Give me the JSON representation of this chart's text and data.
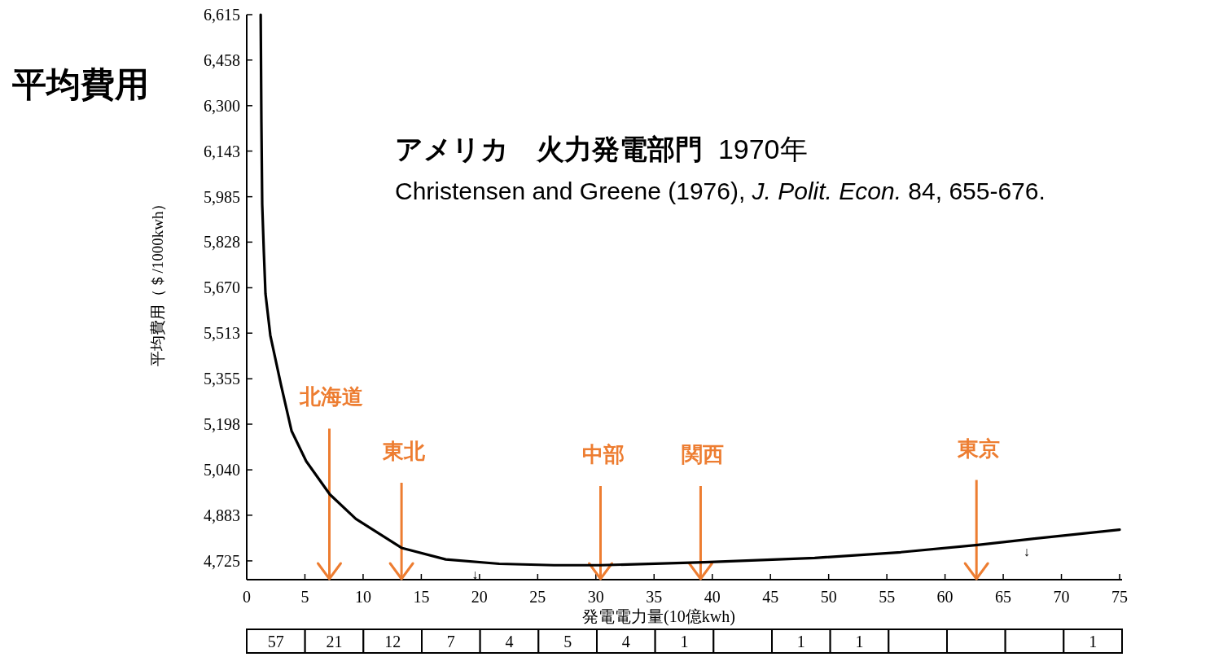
{
  "chart_data": [
    {
      "type": "line",
      "title": "**アメリカ　火力発電部門**  1970年",
      "subtitle": "Christensen and Greene (1976), *J. Polit. Econ.* 84, 655-676.",
      "xlabel": "発電電力量(10億kwh)",
      "ylabel": "平均費用（＄/1000kwh）",
      "annotations": [
        "平均費用",
        {
          "text": "↓",
          "x": 19.6,
          "y": 4720
        },
        {
          "text": "↓",
          "x": 67.0,
          "y": 4799
        }
      ],
      "xlim": [
        0,
        75
      ],
      "ylim": [
        4660,
        6615
      ],
      "xticks": [
        0,
        5,
        10,
        15,
        20,
        25,
        30,
        35,
        40,
        45,
        50,
        55,
        60,
        65,
        70,
        75
      ],
      "yticks": [
        {
          "value": 4725,
          "label": "4,725"
        },
        {
          "value": 4883,
          "label": "4,883"
        },
        {
          "value": 5040,
          "label": "5,040"
        },
        {
          "value": 5198,
          "label": "5,198"
        },
        {
          "value": 5355,
          "label": "5,355"
        },
        {
          "value": 5513,
          "label": "5,513"
        },
        {
          "value": 5670,
          "label": "5,670"
        },
        {
          "value": 5828,
          "label": "5,828"
        },
        {
          "value": 5985,
          "label": "5,985"
        },
        {
          "value": 6143,
          "label": "6,143"
        },
        {
          "value": 6300,
          "label": "6,300"
        },
        {
          "value": 6458,
          "label": "6,458"
        },
        {
          "value": 6615,
          "label": "6,615"
        }
      ],
      "series": [
        {
          "color": "#000000",
          "x": [
            1.2,
            1.26,
            1.33,
            1.47,
            1.61,
            2.03,
            2.94,
            3.85,
            5.11,
            7.14,
            9.38,
            13.3,
            17.1,
            21.7,
            26.4,
            30.4,
            39.3,
            48.8,
            56.2,
            62.8,
            67.2,
            75.0
          ],
          "values": [
            6615,
            6245,
            5960,
            5795,
            5650,
            5505,
            5335,
            5175,
            5070,
            4955,
            4870,
            4770,
            4730,
            4715,
            4710,
            4710,
            4720,
            4735,
            4755,
            4780,
            4800,
            4833
          ]
        }
      ],
      "ref_lines": [
        {
          "axis": "x",
          "value": 7.1,
          "label": "北海道",
          "color": "#ed7d31"
        },
        {
          "axis": "x",
          "value": 13.3,
          "label": "東北",
          "color": "#ed7d31"
        },
        {
          "axis": "x",
          "value": 30.4,
          "label": "中部",
          "color": "#ed7d31"
        },
        {
          "axis": "x",
          "value": 39.0,
          "label": "関西",
          "color": "#ed7d31"
        },
        {
          "axis": "x",
          "value": 62.7,
          "label": "東京",
          "color": "#ed7d31"
        }
      ]
    },
    {
      "type": "other",
      "categories": [
        null,
        null,
        null,
        null,
        null,
        null,
        null,
        null,
        null,
        null,
        null,
        null,
        null,
        null,
        null
      ],
      "values": [
        57,
        21,
        12,
        7,
        4,
        5,
        4,
        1,
        null,
        1,
        1,
        null,
        null,
        null,
        1
      ],
      "data_labels": true
    }
  ]
}
